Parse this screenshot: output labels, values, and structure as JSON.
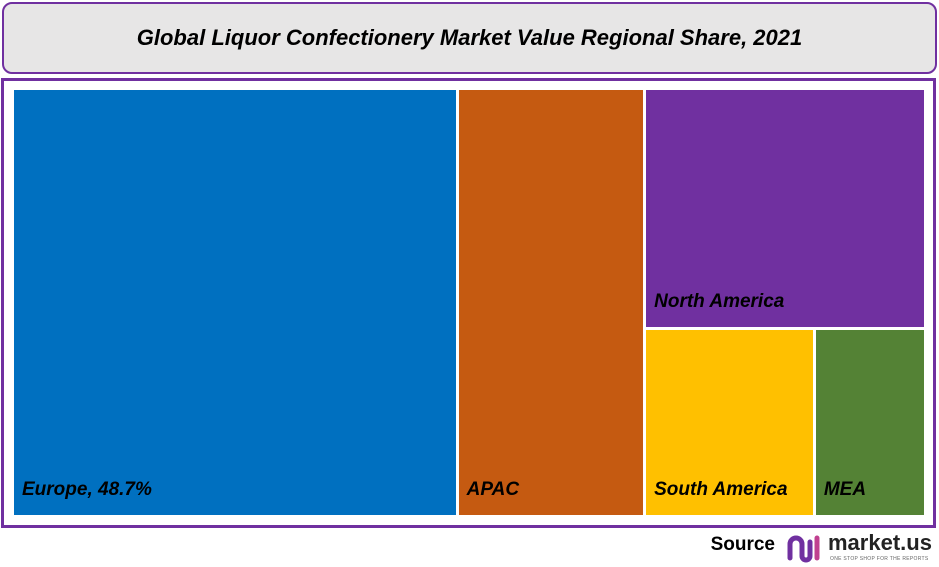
{
  "chart_data": {
    "type": "treemap",
    "title": "Global Liquor Confectionery Market Value Regional Share, 2021",
    "categories": [
      "Europe, 48.7%",
      "APAC",
      "North America",
      "South America",
      "MEA"
    ],
    "values": [
      48.7,
      20.6,
      17.2,
      8.2,
      5.3
    ],
    "colors": [
      "#0070c0",
      "#c55a11",
      "#7030a0",
      "#ffc000",
      "#548235"
    ]
  },
  "footer": {
    "source": "Source",
    "brand": "market.us",
    "tagline": "ONE STOP SHOP FOR THE REPORTS"
  }
}
